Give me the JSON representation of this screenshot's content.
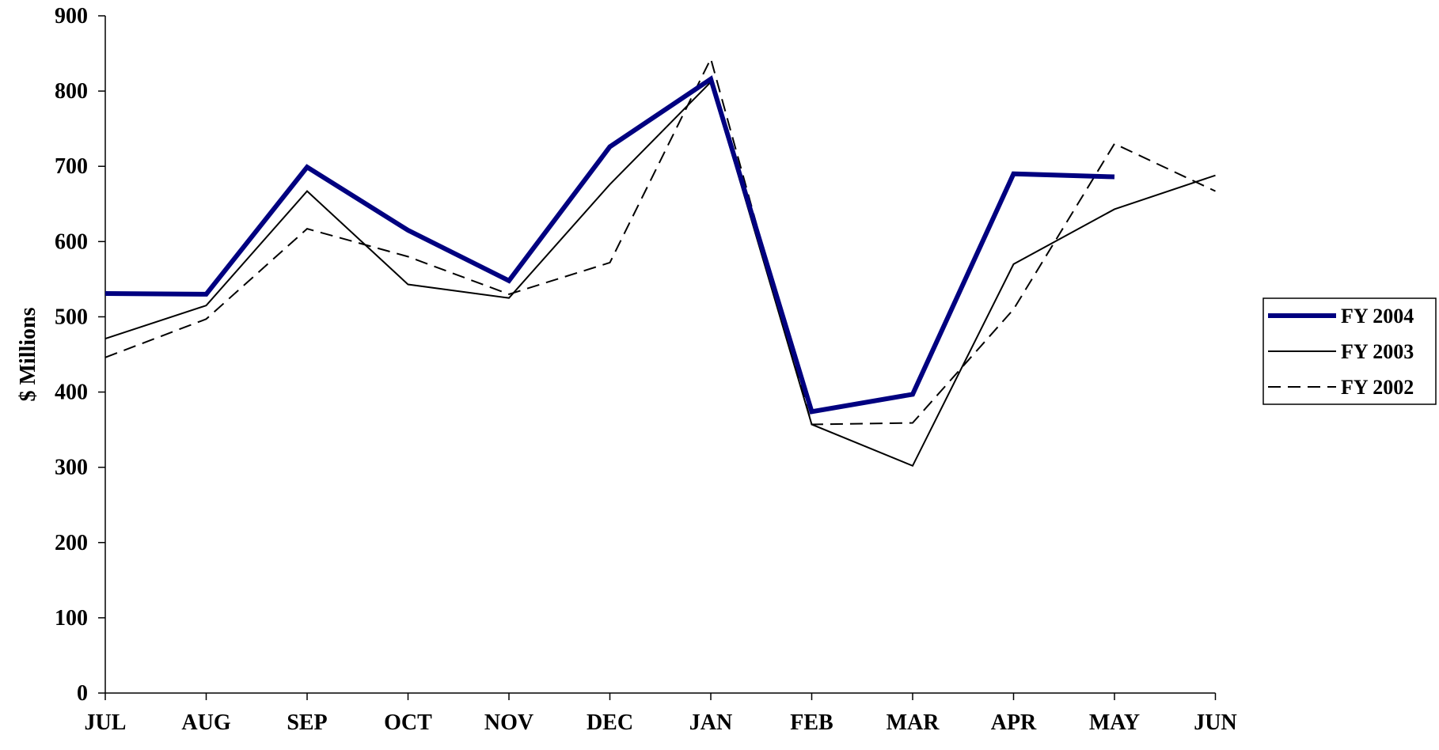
{
  "chart_data": {
    "type": "line",
    "title": "",
    "xlabel": "",
    "ylabel": "$ Millions",
    "categories": [
      "JUL",
      "AUG",
      "SEP",
      "OCT",
      "NOV",
      "DEC",
      "JAN",
      "FEB",
      "MAR",
      "APR",
      "MAY",
      "JUN"
    ],
    "ylim": [
      0,
      900
    ],
    "yticks": [
      0,
      100,
      200,
      300,
      400,
      500,
      600,
      700,
      800,
      900
    ],
    "grid": false,
    "legend_position": "right",
    "series": [
      {
        "name": "FY 2004",
        "style": "thick",
        "color": "#000080",
        "values": [
          531,
          530,
          699,
          615,
          548,
          726,
          816,
          374,
          397,
          690,
          686,
          null
        ]
      },
      {
        "name": "FY 2003",
        "style": "solid",
        "color": "#000000",
        "values": [
          471,
          515,
          667,
          543,
          525,
          676,
          812,
          357,
          302,
          570,
          643,
          688
        ]
      },
      {
        "name": "FY 2002",
        "style": "dashed",
        "color": "#000000",
        "values": [
          446,
          497,
          617,
          580,
          530,
          572,
          843,
          357,
          359,
          510,
          730,
          667
        ]
      }
    ]
  }
}
